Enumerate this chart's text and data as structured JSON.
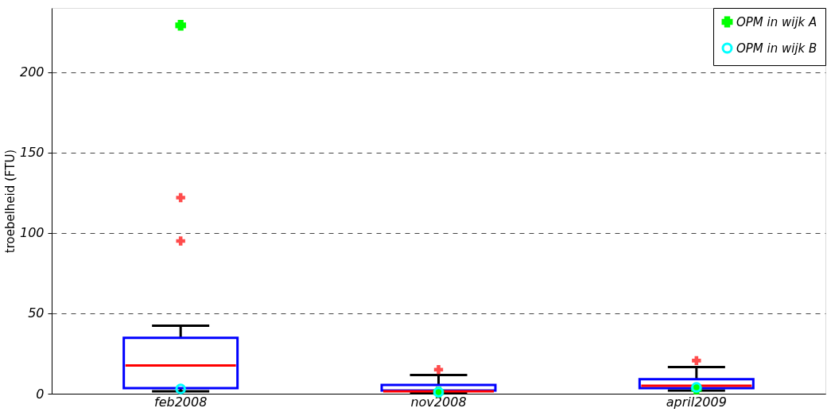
{
  "chart_data": {
    "type": "box",
    "ylabel": "troebelheid (FTU)",
    "categories": [
      "feb2008",
      "nov2008",
      "april2009"
    ],
    "color": "#0000ff",
    "boxes": [
      {
        "low": 1.5,
        "q1": 3.5,
        "median": 17.6,
        "q3": 34.8,
        "high": 42.3,
        "outliers": [
          122,
          95
        ]
      },
      {
        "low": 0.5,
        "q1": 2,
        "median": 1.5,
        "q3": 5.5,
        "high": 11.6,
        "outliers": [
          15
        ]
      },
      {
        "low": 2,
        "q1": 3.5,
        "median": 5,
        "q3": 9,
        "high": 16.6,
        "outliers": [
          20.6
        ]
      }
    ],
    "series": [
      {
        "name": "OPM in wijk A",
        "type": "scatter",
        "marker": "cross",
        "color": "#00ff00",
        "x": [
          "feb2008",
          "nov2008",
          "april2009"
        ],
        "values": [
          229.2,
          1,
          3
        ]
      },
      {
        "name": "OPM in wijk B",
        "type": "scatter",
        "marker": "circle",
        "color": "#00ffff",
        "x": [
          "feb2008",
          "nov2008",
          "april2009"
        ],
        "values": [
          3,
          1,
          4
        ]
      }
    ],
    "ylim": [
      0,
      240
    ],
    "yticks": [
      0,
      50,
      100,
      150,
      200
    ],
    "grid": "y",
    "legend": "top right"
  }
}
